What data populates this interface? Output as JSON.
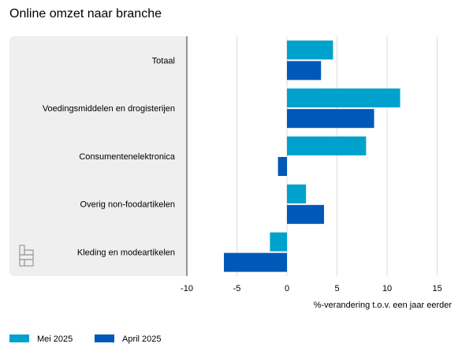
{
  "chart_data": {
    "type": "hbar",
    "title": "Online omzet naar branche",
    "categories": [
      "Totaal",
      "Voedingsmiddelen en drogisterijen",
      "Consumentenelektronica",
      "Overig non-foodartikelen",
      "Kleding en modeartikelen"
    ],
    "series": [
      {
        "name": "Mei 2025",
        "color": "#00a1cd",
        "values": [
          4.6,
          11.3,
          7.9,
          1.9,
          -1.7
        ]
      },
      {
        "name": "April 2025",
        "color": "#0058b8",
        "values": [
          3.4,
          8.7,
          -0.9,
          3.7,
          -6.3
        ]
      }
    ],
    "xlim": [
      -10,
      17
    ],
    "xticks": [
      -10,
      -5,
      0,
      5,
      10,
      15
    ],
    "xlabel": "%-verandering t.o.v. een jaar eerder",
    "grid": true
  }
}
